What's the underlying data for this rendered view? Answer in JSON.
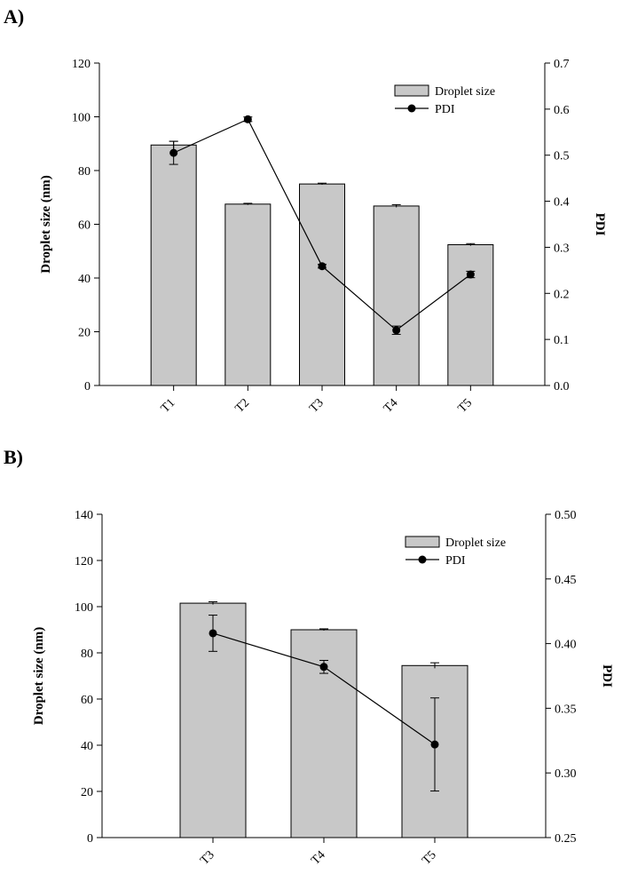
{
  "panels": [
    {
      "label": "A)"
    },
    {
      "label": "B)"
    }
  ],
  "colors": {
    "bar_fill": "#c8c8c8",
    "bar_stroke": "#000000",
    "line": "#000000",
    "marker": "#000000"
  },
  "chart_data": [
    {
      "type": "bar",
      "panel": "A)",
      "categories": [
        "T1",
        "T2",
        "T3",
        "T4",
        "T5"
      ],
      "ylabel": "Droplet size (nm)",
      "y2label": "PDI",
      "ylim": [
        0,
        120
      ],
      "yticks": [
        0,
        20,
        40,
        60,
        80,
        100,
        120
      ],
      "y2lim": [
        0,
        0.7
      ],
      "y2ticks": [
        "0.0",
        "0.1",
        "0.2",
        "0.3",
        "0.4",
        "0.5",
        "0.6",
        "0.7"
      ],
      "legend": {
        "position": "top-right",
        "entries": [
          "Droplet size",
          "PDI"
        ]
      },
      "series": [
        {
          "name": "Droplet size",
          "type": "bar",
          "axis": "left",
          "values": [
            89.5,
            67.5,
            75,
            66.8,
            52.4
          ],
          "errors": [
            1.4,
            0.3,
            0.3,
            0.5,
            0.4
          ]
        },
        {
          "name": "PDI",
          "type": "line",
          "axis": "right",
          "values": [
            0.505,
            0.578,
            0.259,
            0.12,
            0.241
          ],
          "errors": [
            0.025,
            0.005,
            0.004,
            0.009,
            0.007
          ]
        }
      ]
    },
    {
      "type": "bar",
      "panel": "B)",
      "categories": [
        "T3",
        "T4",
        "T5"
      ],
      "ylabel": "Droplet size (nm)",
      "y2label": "PDI",
      "ylim": [
        0,
        140
      ],
      "yticks": [
        0,
        20,
        40,
        60,
        80,
        100,
        120,
        140
      ],
      "y2lim": [
        0.25,
        0.5
      ],
      "y2ticks": [
        "0.25",
        "0.30",
        "0.35",
        "0.40",
        "0.45",
        "0.50"
      ],
      "legend": {
        "position": "top-right",
        "entries": [
          "Droplet size",
          "PDI"
        ]
      },
      "series": [
        {
          "name": "Droplet size",
          "type": "bar",
          "axis": "left",
          "values": [
            101.5,
            90,
            74.5
          ],
          "errors": [
            0.6,
            0.4,
            1.2
          ]
        },
        {
          "name": "PDI",
          "type": "line",
          "axis": "right",
          "values": [
            0.408,
            0.382,
            0.322
          ],
          "errors": [
            0.014,
            0.005,
            0.036
          ]
        }
      ]
    }
  ]
}
